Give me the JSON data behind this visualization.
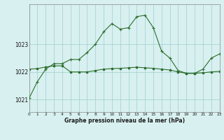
{
  "line1_x": [
    0,
    1,
    2,
    3,
    4,
    5,
    6,
    7,
    8,
    9,
    10,
    11,
    12,
    13,
    14,
    15,
    16,
    17,
    18,
    19,
    20,
    21,
    22,
    23
  ],
  "line1_y": [
    1021.05,
    1021.65,
    1022.1,
    1022.3,
    1022.3,
    1022.45,
    1022.45,
    1022.7,
    1023.0,
    1023.45,
    1023.75,
    1023.55,
    1023.6,
    1024.0,
    1024.05,
    1023.6,
    1022.75,
    1022.5,
    1022.05,
    1021.95,
    1021.95,
    1022.1,
    1022.5,
    1022.65
  ],
  "line2_x": [
    0,
    1,
    2,
    3,
    4,
    5,
    6,
    7,
    8,
    9,
    10,
    11,
    12,
    13,
    14,
    15,
    16,
    17,
    18,
    19,
    20,
    21,
    22,
    23
  ],
  "line2_y": [
    1022.1,
    1022.12,
    1022.18,
    1022.22,
    1022.22,
    1022.0,
    1022.0,
    1022.0,
    1022.05,
    1022.1,
    1022.12,
    1022.13,
    1022.15,
    1022.17,
    1022.15,
    1022.13,
    1022.1,
    1022.07,
    1022.0,
    1021.95,
    1021.95,
    1021.97,
    1022.0,
    1022.02
  ],
  "line_color": "#2d6e2d",
  "bg_color": "#d8f0f0",
  "grid_color": "#9ecece",
  "yticks": [
    1021,
    1022,
    1023
  ],
  "xticks": [
    0,
    1,
    2,
    3,
    4,
    5,
    6,
    7,
    8,
    9,
    10,
    11,
    12,
    13,
    14,
    15,
    16,
    17,
    18,
    19,
    20,
    21,
    22,
    23
  ],
  "xlabel": "Graphe pression niveau de la mer (hPa)",
  "ylim": [
    1020.55,
    1024.45
  ],
  "xlim": [
    0,
    23
  ]
}
